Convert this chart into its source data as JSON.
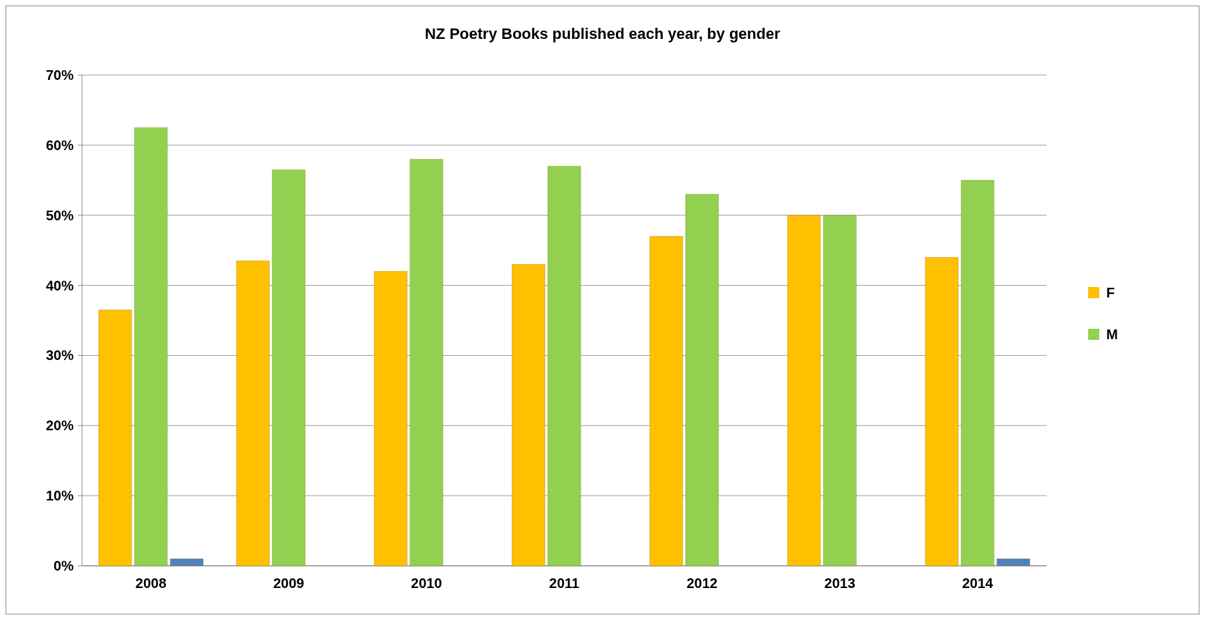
{
  "chart_data": {
    "type": "bar",
    "title": "NZ Poetry Books published each year, by gender",
    "categories": [
      "2008",
      "2009",
      "2010",
      "2011",
      "2012",
      "2013",
      "2014"
    ],
    "series": [
      {
        "name": "F",
        "color": "#ffc000",
        "values": [
          36.5,
          43.5,
          42,
          43,
          47,
          50,
          44
        ]
      },
      {
        "name": "M",
        "color": "#92d050",
        "values": [
          62.5,
          56.5,
          58,
          57,
          53,
          50,
          55
        ]
      },
      {
        "color": "#4f81bd",
        "values": [
          1,
          null,
          null,
          null,
          null,
          null,
          1
        ]
      }
    ],
    "ylim": [
      0,
      70
    ],
    "yticks": [
      {
        "value": 0,
        "label": "0%"
      },
      {
        "value": 10,
        "label": "10%"
      },
      {
        "value": 20,
        "label": "20%"
      },
      {
        "value": 30,
        "label": "30%"
      },
      {
        "value": 40,
        "label": "40%"
      },
      {
        "value": 50,
        "label": "50%"
      },
      {
        "value": 60,
        "label": "60%"
      },
      {
        "value": 70,
        "label": "70%"
      }
    ],
    "grid": "y",
    "legend": "right"
  }
}
